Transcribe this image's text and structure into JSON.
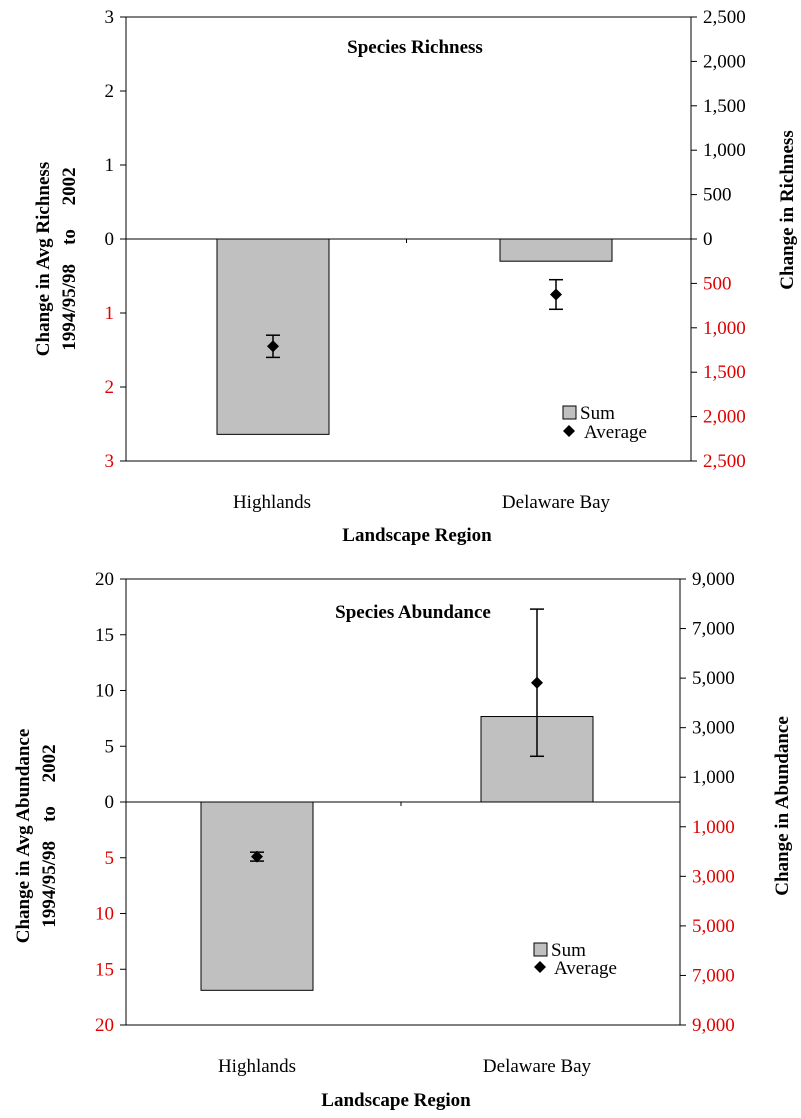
{
  "chart_data": [
    {
      "type": "bar",
      "title": "Species Richness",
      "xlabel": "Landscape Region",
      "ylabel_left_line1": "Change in Avg Richness",
      "ylabel_left_line2": "1994/95/98    to     2002",
      "ylabel_right": "Change in Richness",
      "categories": [
        "Highlands",
        "Delaware Bay"
      ],
      "left_axis": {
        "ylim": [
          -3,
          3
        ],
        "ticks": [
          {
            "value": 3,
            "label": "3",
            "color": "#000000"
          },
          {
            "value": 2,
            "label": "2",
            "color": "#000000"
          },
          {
            "value": 1,
            "label": "1",
            "color": "#000000"
          },
          {
            "value": 0,
            "label": "0",
            "color": "#000000"
          },
          {
            "value": -1,
            "label": "1",
            "color": "#e00000"
          },
          {
            "value": -2,
            "label": "2",
            "color": "#e00000"
          },
          {
            "value": -3,
            "label": "3",
            "color": "#e00000"
          }
        ]
      },
      "right_axis": {
        "ylim": [
          -2500,
          2500
        ],
        "ticks": [
          {
            "value": 2500,
            "label": "2,500",
            "color": "#000000"
          },
          {
            "value": 2000,
            "label": "2,000",
            "color": "#000000"
          },
          {
            "value": 1500,
            "label": "1,500",
            "color": "#000000"
          },
          {
            "value": 1000,
            "label": "1,000",
            "color": "#000000"
          },
          {
            "value": 500,
            "label": "500",
            "color": "#000000"
          },
          {
            "value": 0,
            "label": "0",
            "color": "#000000"
          },
          {
            "value": -500,
            "label": "500",
            "color": "#e00000"
          },
          {
            "value": -1000,
            "label": "1,000",
            "color": "#e00000"
          },
          {
            "value": -1500,
            "label": "1,500",
            "color": "#e00000"
          },
          {
            "value": -2000,
            "label": "2,000",
            "color": "#e00000"
          },
          {
            "value": -2500,
            "label": "2,500",
            "color": "#e00000"
          }
        ]
      },
      "series": [
        {
          "name": "Sum",
          "axis": "right",
          "mark": "bar",
          "color": "#c0c0c0",
          "values": [
            -2200,
            -250
          ]
        },
        {
          "name": "Average",
          "axis": "left",
          "mark": "diamond",
          "color": "#000000",
          "values": [
            -1.45,
            -0.75
          ],
          "error_low": [
            -1.6,
            -0.95
          ],
          "error_high": [
            -1.3,
            -0.55
          ]
        }
      ],
      "legend": {
        "position": "bottom-right",
        "items": [
          "Sum",
          "Average"
        ]
      },
      "grid": false
    },
    {
      "type": "bar",
      "title": "Species Abundance",
      "xlabel": "Landscape Region",
      "ylabel_left_line1": "Change in Avg Abundance",
      "ylabel_left_line2": "1994/95/98    to     2002",
      "ylabel_right": "Change in Abundance",
      "categories": [
        "Highlands",
        "Delaware Bay"
      ],
      "left_axis": {
        "ylim": [
          -20,
          20
        ],
        "ticks": [
          {
            "value": 20,
            "label": "20",
            "color": "#000000"
          },
          {
            "value": 15,
            "label": "15",
            "color": "#000000"
          },
          {
            "value": 10,
            "label": "10",
            "color": "#000000"
          },
          {
            "value": 5,
            "label": "5",
            "color": "#000000"
          },
          {
            "value": 0,
            "label": "0",
            "color": "#000000"
          },
          {
            "value": -5,
            "label": "5",
            "color": "#e00000"
          },
          {
            "value": -10,
            "label": "10",
            "color": "#e00000"
          },
          {
            "value": -15,
            "label": "15",
            "color": "#e00000"
          },
          {
            "value": -20,
            "label": "20",
            "color": "#e00000"
          }
        ]
      },
      "right_axis": {
        "ylim": [
          -9000,
          9000
        ],
        "ticks": [
          {
            "value": 9000,
            "label": "9,000",
            "color": "#000000"
          },
          {
            "value": 7000,
            "label": "7,000",
            "color": "#000000"
          },
          {
            "value": 5000,
            "label": "5,000",
            "color": "#000000"
          },
          {
            "value": 3000,
            "label": "3,000",
            "color": "#000000"
          },
          {
            "value": 1000,
            "label": "1,000",
            "color": "#000000"
          },
          {
            "value": -1000,
            "label": "1,000",
            "color": "#e00000"
          },
          {
            "value": -3000,
            "label": "3,000",
            "color": "#e00000"
          },
          {
            "value": -5000,
            "label": "5,000",
            "color": "#e00000"
          },
          {
            "value": -7000,
            "label": "7,000",
            "color": "#e00000"
          },
          {
            "value": -9000,
            "label": "9,000",
            "color": "#e00000"
          }
        ]
      },
      "series": [
        {
          "name": "Sum",
          "axis": "right",
          "mark": "bar",
          "color": "#c0c0c0",
          "values": [
            -7600,
            3450
          ]
        },
        {
          "name": "Average",
          "axis": "left",
          "mark": "diamond",
          "color": "#000000",
          "values": [
            -4.9,
            10.7
          ],
          "error_low": [
            -5.3,
            4.1
          ],
          "error_high": [
            -4.5,
            17.3
          ]
        }
      ],
      "legend": {
        "position": "bottom-right",
        "items": [
          "Sum",
          "Average"
        ]
      },
      "grid": false
    }
  ]
}
